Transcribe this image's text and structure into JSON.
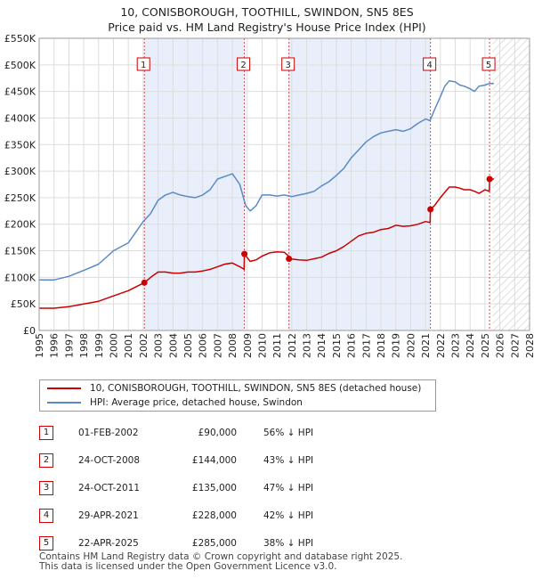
{
  "title_line1": "10, CONISBOROUGH, TOOTHILL, SWINDON, SN5 8ES",
  "title_line2": "Price paid vs. HM Land Registry's House Price Index (HPI)",
  "colors": {
    "red": "#cc0000",
    "blue": "#5a8ac6",
    "shade": "#e8eefa",
    "grid": "#dddddd"
  },
  "legend": {
    "red_label": "10, CONISBOROUGH, TOOTHILL, SWINDON, SN5 8ES (detached house)",
    "blue_label": "HPI: Average price, detached house, Swindon"
  },
  "sales": [
    {
      "num": "1",
      "date": "01-FEB-2002",
      "price": "£90,000",
      "hpi": "56% ↓ HPI"
    },
    {
      "num": "2",
      "date": "24-OCT-2008",
      "price": "£144,000",
      "hpi": "43% ↓ HPI"
    },
    {
      "num": "3",
      "date": "24-OCT-2011",
      "price": "£135,000",
      "hpi": "47% ↓ HPI"
    },
    {
      "num": "4",
      "date": "29-APR-2021",
      "price": "£228,000",
      "hpi": "42% ↓ HPI"
    },
    {
      "num": "5",
      "date": "22-APR-2025",
      "price": "£285,000",
      "hpi": "38% ↓ HPI"
    }
  ],
  "footer": {
    "line1": "Contains HM Land Registry data © Crown copyright and database right 2025.",
    "line2": "This data is licensed under the Open Government Licence v3.0."
  },
  "chart_data": {
    "type": "line",
    "xlim": [
      1995,
      2028
    ],
    "ylim": [
      0,
      550000
    ],
    "x_ticks": [
      1995,
      1996,
      1997,
      1998,
      1999,
      2000,
      2001,
      2002,
      2003,
      2004,
      2005,
      2006,
      2007,
      2008,
      2009,
      2010,
      2011,
      2012,
      2013,
      2014,
      2015,
      2016,
      2017,
      2018,
      2019,
      2020,
      2021,
      2022,
      2023,
      2024,
      2025,
      2026,
      2027,
      2028
    ],
    "y_ticks": [
      0,
      50000,
      100000,
      150000,
      200000,
      250000,
      300000,
      350000,
      400000,
      450000,
      500000,
      550000
    ],
    "y_tick_labels": [
      "£0",
      "£50K",
      "£100K",
      "£150K",
      "£200K",
      "£250K",
      "£300K",
      "£350K",
      "£400K",
      "£450K",
      "£500K",
      "£550K"
    ],
    "shaded_spans": [
      [
        2002.08,
        2008.81
      ],
      [
        2011.81,
        2021.33
      ]
    ],
    "future_hatch_from": 2025.5,
    "markers": [
      {
        "label": "1",
        "x": 2002.08,
        "y": 90000
      },
      {
        "label": "2",
        "x": 2008.81,
        "y": 144000
      },
      {
        "label": "3",
        "x": 2011.81,
        "y": 135000
      },
      {
        "label": "4",
        "x": 2021.33,
        "y": 228000
      },
      {
        "label": "5",
        "x": 2025.31,
        "y": 285000
      }
    ],
    "series": [
      {
        "name": "HPI: Average price, detached house, Swindon",
        "color": "#5a8ac6",
        "x": [
          1995.0,
          1996.0,
          1997.0,
          1998.0,
          1999.0,
          2000.0,
          2001.0,
          2002.0,
          2002.5,
          2003.0,
          2003.5,
          2004.0,
          2004.5,
          2005.0,
          2005.5,
          2006.0,
          2006.5,
          2007.0,
          2007.5,
          2008.0,
          2008.5,
          2008.9,
          2009.2,
          2009.6,
          2010.0,
          2010.5,
          2011.0,
          2011.5,
          2012.0,
          2012.5,
          2013.0,
          2013.5,
          2014.0,
          2014.5,
          2015.0,
          2015.5,
          2016.0,
          2016.5,
          2017.0,
          2017.5,
          2018.0,
          2018.5,
          2019.0,
          2019.5,
          2020.0,
          2020.5,
          2021.0,
          2021.3,
          2021.6,
          2022.0,
          2022.3,
          2022.6,
          2023.0,
          2023.3,
          2023.6,
          2024.0,
          2024.3,
          2024.6,
          2025.0,
          2025.3,
          2025.6
        ],
        "y": [
          95000,
          95000,
          102000,
          113000,
          125000,
          150000,
          165000,
          205000,
          220000,
          245000,
          255000,
          260000,
          255000,
          252000,
          250000,
          255000,
          265000,
          285000,
          290000,
          295000,
          275000,
          235000,
          225000,
          235000,
          255000,
          255000,
          253000,
          255000,
          252000,
          255000,
          258000,
          262000,
          272000,
          280000,
          292000,
          305000,
          325000,
          340000,
          355000,
          365000,
          372000,
          375000,
          378000,
          375000,
          380000,
          390000,
          398000,
          395000,
          415000,
          440000,
          460000,
          470000,
          468000,
          462000,
          460000,
          455000,
          450000,
          460000,
          462000,
          465000,
          465000
        ]
      },
      {
        "name": "10, CONISBOROUGH, TOOTHILL, SWINDON, SN5 8ES (detached house)",
        "color": "#cc0000",
        "x": [
          1995.0,
          1996.0,
          1997.0,
          1998.0,
          1999.0,
          2000.0,
          2001.0,
          2002.08,
          2002.5,
          2003.0,
          2003.5,
          2004.0,
          2004.5,
          2005.0,
          2005.5,
          2006.0,
          2006.5,
          2007.0,
          2007.5,
          2008.0,
          2008.5,
          2008.79,
          2008.81,
          2009.2,
          2009.6,
          2010.0,
          2010.5,
          2011.0,
          2011.5,
          2011.79,
          2011.81,
          2012.5,
          2013.0,
          2013.5,
          2014.0,
          2014.5,
          2015.0,
          2015.5,
          2016.0,
          2016.5,
          2017.0,
          2017.5,
          2018.0,
          2018.5,
          2019.0,
          2019.5,
          2020.0,
          2020.5,
          2021.0,
          2021.31,
          2021.33,
          2021.6,
          2022.0,
          2022.3,
          2022.6,
          2023.0,
          2023.3,
          2023.6,
          2024.0,
          2024.3,
          2024.6,
          2025.0,
          2025.29,
          2025.31,
          2025.6
        ],
        "y": [
          42000,
          42000,
          45000,
          50000,
          55000,
          65000,
          75000,
          90000,
          100000,
          110000,
          110000,
          108000,
          108000,
          110000,
          110000,
          112000,
          115000,
          120000,
          125000,
          127000,
          120000,
          115000,
          144000,
          130000,
          133000,
          140000,
          146000,
          148000,
          147000,
          140000,
          135000,
          133000,
          132000,
          135000,
          138000,
          145000,
          150000,
          158000,
          168000,
          178000,
          183000,
          185000,
          190000,
          192000,
          198000,
          196000,
          197000,
          200000,
          205000,
          203000,
          228000,
          235000,
          250000,
          260000,
          270000,
          270000,
          268000,
          265000,
          265000,
          262000,
          258000,
          265000,
          262000,
          285000,
          285000
        ]
      }
    ]
  }
}
